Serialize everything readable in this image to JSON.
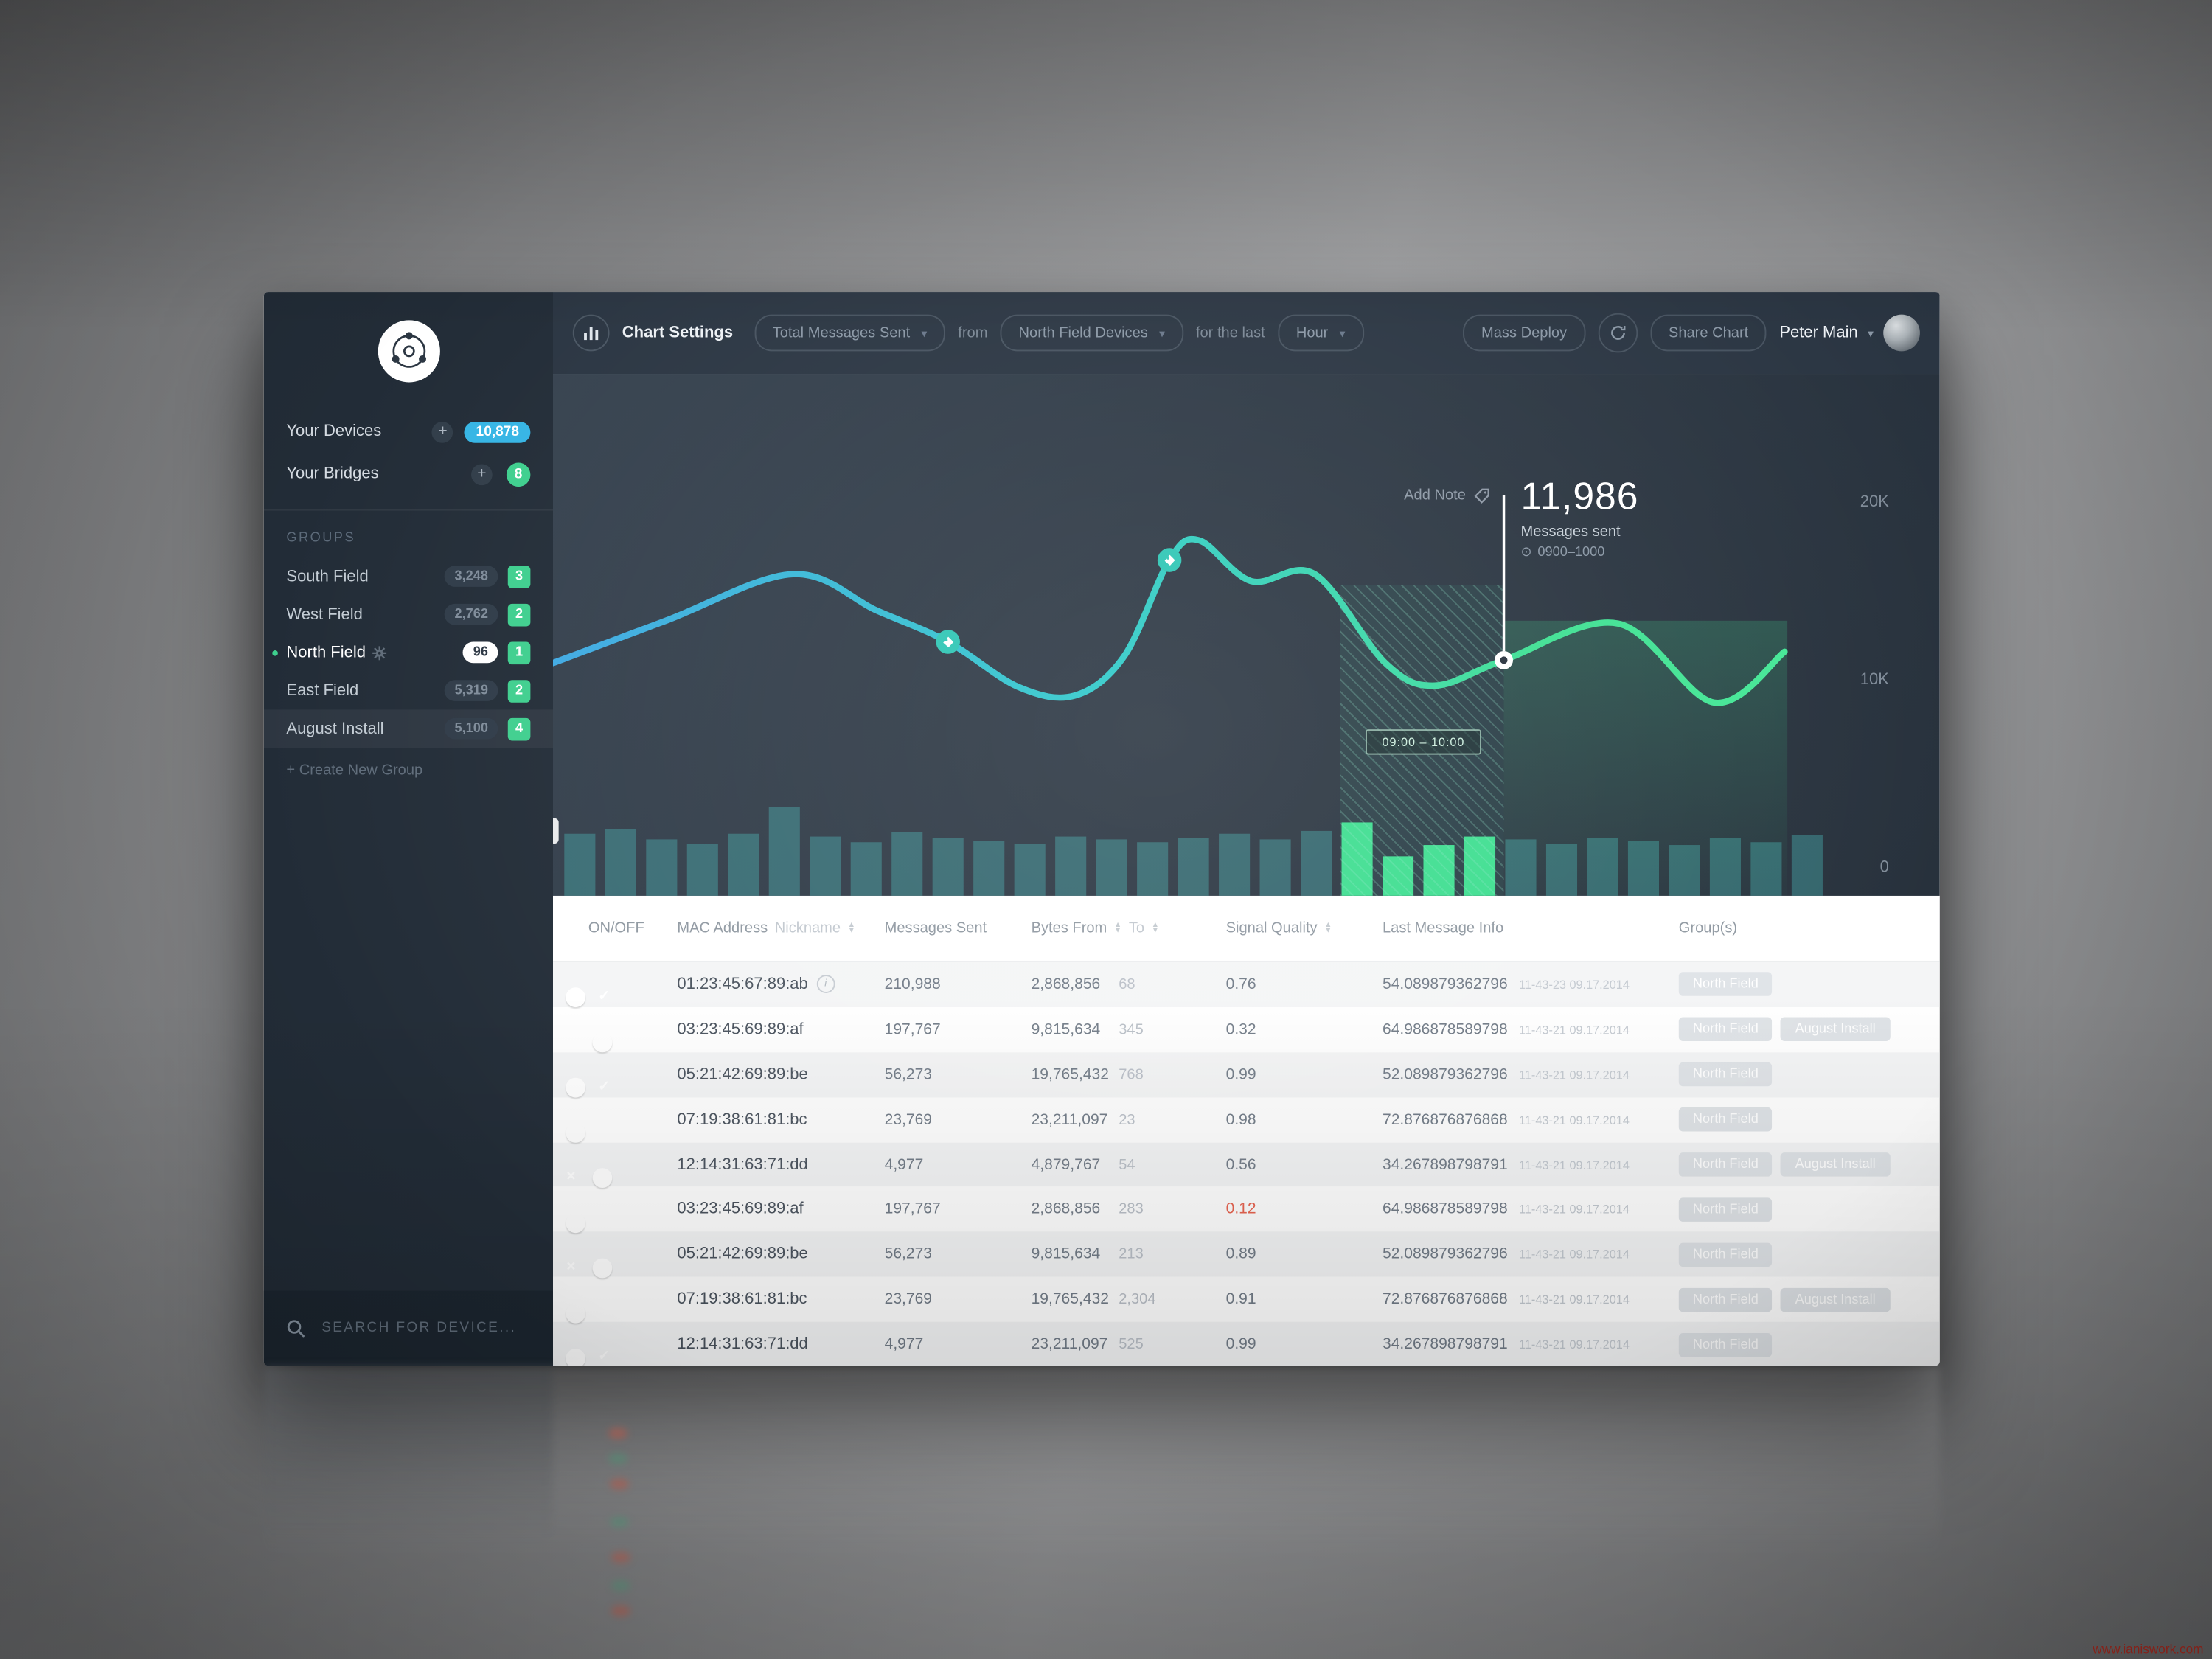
{
  "watermark": "www.ianiswork.com",
  "sidebar": {
    "devices_label": "Your Devices",
    "devices_count": "10,878",
    "bridges_label": "Your Bridges",
    "bridges_count": "8",
    "groups_header": "GROUPS",
    "groups": [
      {
        "name": "South Field",
        "count": "3,248",
        "badge": "3",
        "active": false,
        "highlight": false
      },
      {
        "name": "West Field",
        "count": "2,762",
        "badge": "2",
        "active": false,
        "highlight": false
      },
      {
        "name": "North Field",
        "count": "96",
        "badge": "1",
        "active": true,
        "highlight": false
      },
      {
        "name": "East Field",
        "count": "5,319",
        "badge": "2",
        "active": false,
        "highlight": false
      },
      {
        "name": "August Install",
        "count": "5,100",
        "badge": "4",
        "active": false,
        "highlight": true
      }
    ],
    "create_group": "+ Create New Group",
    "search_placeholder": "SEARCH FOR DEVICE..."
  },
  "topbar": {
    "chart_settings": "Chart Settings",
    "metric": "Total Messages Sent",
    "from_label": "from",
    "devices": "North Field Devices",
    "for_last_label": "for the last",
    "period": "Hour",
    "mass_deploy": "Mass Deploy",
    "share_chart": "Share Chart",
    "user": "Peter Main"
  },
  "chart": {
    "add_note": "Add Note",
    "value": "11,986",
    "value_label": "Messages sent",
    "value_time": "0900–1000",
    "band_label": "09:00 – 10:00",
    "yticks": [
      "20K",
      "10K",
      "0"
    ]
  },
  "chart_data": {
    "type": "line",
    "title": "Total Messages Sent — North Field Devices — Hour",
    "ylabel_ticks": [
      "20K",
      "10K",
      "0"
    ],
    "ylim": [
      0,
      20000
    ],
    "selected_point": {
      "value": 11986,
      "label": "Messages sent",
      "time": "0900–1000"
    },
    "highlight_band": "09:00 – 10:00",
    "line_points": [
      [
        0,
        205
      ],
      [
        80,
        175
      ],
      [
        170,
        142
      ],
      [
        230,
        168
      ],
      [
        280,
        190
      ],
      [
        330,
        222
      ],
      [
        370,
        228
      ],
      [
        405,
        200
      ],
      [
        437,
        132
      ],
      [
        458,
        118
      ],
      [
        495,
        147
      ],
      [
        540,
        142
      ],
      [
        590,
        205
      ],
      [
        625,
        221
      ],
      [
        674,
        203
      ],
      [
        755,
        177
      ],
      [
        823,
        233
      ],
      [
        873,
        197
      ]
    ],
    "tag_markers": [
      [
        280,
        190
      ],
      [
        437,
        132
      ]
    ],
    "selected": [
      674,
      203
    ],
    "selected_line_top": 86,
    "bars": [
      44,
      47,
      40,
      37,
      44,
      63,
      42,
      38,
      45,
      41,
      39,
      37,
      42,
      40,
      38,
      41,
      44,
      40,
      46,
      52,
      28,
      36,
      42,
      40,
      37,
      41,
      39,
      36,
      41,
      38,
      43
    ],
    "bar_green": [
      19,
      20,
      21,
      22
    ]
  },
  "table": {
    "headers": {
      "onoff": "ON/OFF",
      "mac": "MAC Address",
      "nickname": "Nickname",
      "messages": "Messages Sent",
      "bytes_from": "Bytes From",
      "bytes_to": "To",
      "signal": "Signal Quality",
      "last": "Last Message Info",
      "groups": "Group(s)"
    },
    "rows": [
      {
        "on": true,
        "mac": "01:23:45:67:89:ab",
        "info": true,
        "messages": "210,988",
        "bytes": "2,868,856",
        "to": "68",
        "signal": "0.76",
        "signal_alert": false,
        "last": "54.089879362796",
        "ts": "11-43-23 09.17.2014",
        "groups": [
          "North Field"
        ]
      },
      {
        "on": false,
        "mac": "03:23:45:69:89:af",
        "info": false,
        "messages": "197,767",
        "bytes": "9,815,634",
        "to": "345",
        "signal": "0.32",
        "signal_alert": false,
        "last": "64.986878589798",
        "ts": "11-43-21 09.17.2014",
        "groups": [
          "North Field",
          "August Install"
        ]
      },
      {
        "on": true,
        "mac": "05:21:42:69:89:be",
        "info": false,
        "messages": "56,273",
        "bytes": "19,765,432",
        "to": "768",
        "signal": "0.99",
        "signal_alert": false,
        "last": "52.089879362796",
        "ts": "11-43-21 09.17.2014",
        "groups": [
          "North Field"
        ]
      },
      {
        "on": true,
        "mac": "07:19:38:61:81:bc",
        "info": false,
        "messages": "23,769",
        "bytes": "23,211,097",
        "to": "23",
        "signal": "0.98",
        "signal_alert": false,
        "last": "72.876876876868",
        "ts": "11-43-21 09.17.2014",
        "groups": [
          "North Field"
        ]
      },
      {
        "on": false,
        "mac": "12:14:31:63:71:dd",
        "info": false,
        "messages": "4,977",
        "bytes": "4,879,767",
        "to": "54",
        "signal": "0.56",
        "signal_alert": false,
        "last": "34.267898798791",
        "ts": "11-43-21 09.17.2014",
        "groups": [
          "North Field",
          "August Install"
        ]
      },
      {
        "on": true,
        "mac": "03:23:45:69:89:af",
        "info": false,
        "messages": "197,767",
        "bytes": "2,868,856",
        "to": "283",
        "signal": "0.12",
        "signal_alert": true,
        "last": "64.986878589798",
        "ts": "11-43-21 09.17.2014",
        "groups": [
          "North Field"
        ]
      },
      {
        "on": false,
        "mac": "05:21:42:69:89:be",
        "info": false,
        "messages": "56,273",
        "bytes": "9,815,634",
        "to": "213",
        "signal": "0.89",
        "signal_alert": false,
        "last": "52.089879362796",
        "ts": "11-43-21 09.17.2014",
        "groups": [
          "North Field"
        ]
      },
      {
        "on": true,
        "mac": "07:19:38:61:81:bc",
        "info": false,
        "messages": "23,769",
        "bytes": "19,765,432",
        "to": "2,304",
        "signal": "0.91",
        "signal_alert": false,
        "last": "72.876876876868",
        "ts": "11-43-21 09.17.2014",
        "groups": [
          "North Field",
          "August Install"
        ]
      },
      {
        "on": true,
        "mac": "12:14:31:63:71:dd",
        "info": false,
        "messages": "4,977",
        "bytes": "23,211,097",
        "to": "525",
        "signal": "0.99",
        "signal_alert": false,
        "last": "34.267898798791",
        "ts": "11-43-21 09.17.2014",
        "groups": [
          "North Field"
        ]
      }
    ]
  },
  "colors": {
    "accent_blue": "#35b5e5",
    "accent_green": "#3ecf8e",
    "accent_red": "#f0654e",
    "sidebar_bg": "#222c37",
    "topbar_bg": "#2a3542",
    "line_gradient": [
      "#3fa9e3",
      "#2fc9c9",
      "#3ee092"
    ]
  }
}
